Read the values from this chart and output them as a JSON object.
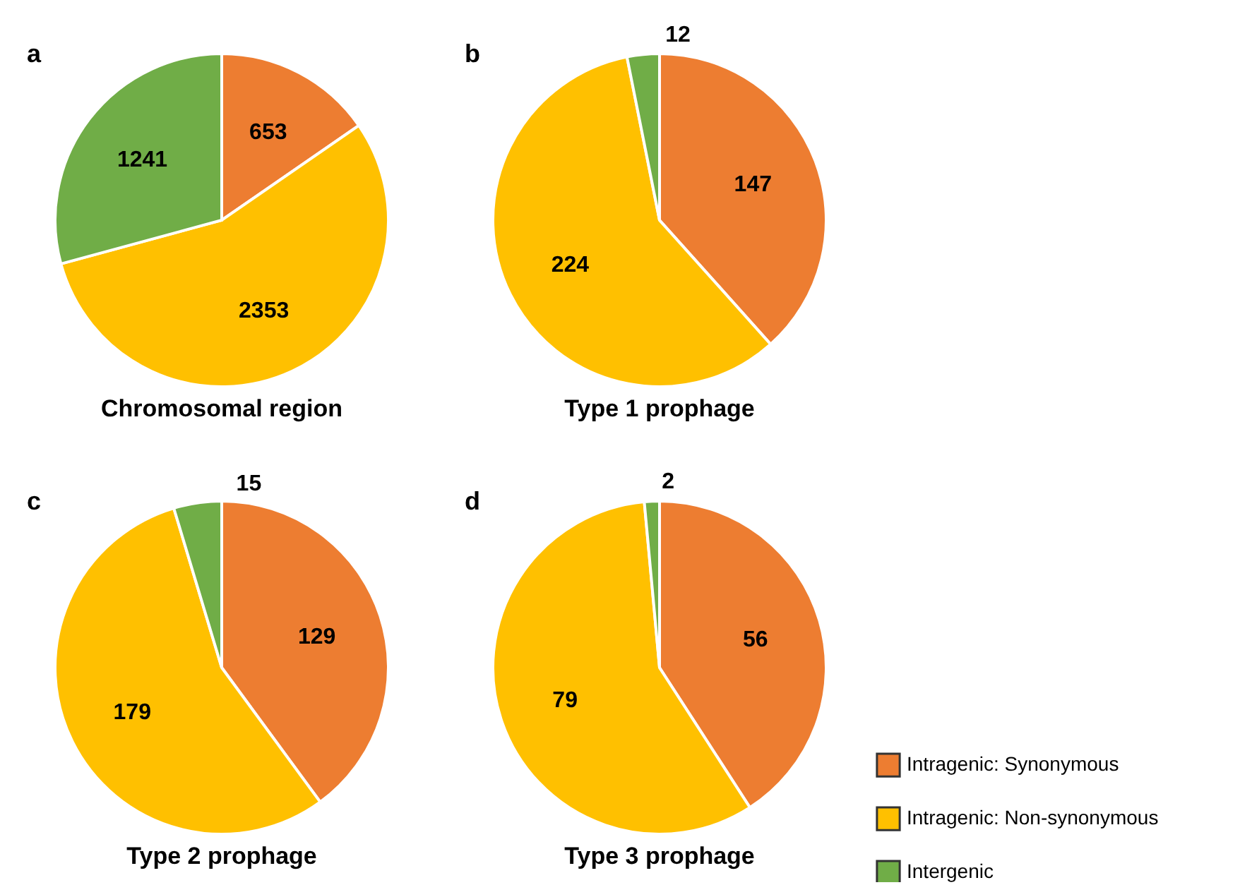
{
  "chart_data": [
    {
      "type": "pie",
      "title": "Chromosomal region",
      "annotations": [
        "a"
      ],
      "values": [
        653,
        2353,
        1241
      ],
      "colors": [
        "#ed7d31",
        "#ffc000",
        "#70ad47"
      ],
      "data_labels": true
    },
    {
      "type": "pie",
      "title": "Type 1 prophage",
      "annotations": [
        "b"
      ],
      "values": [
        147,
        224,
        12
      ],
      "colors": [
        "#ed7d31",
        "#ffc000",
        "#70ad47"
      ],
      "data_labels": true
    },
    {
      "type": "pie",
      "title": "Type 2 prophage",
      "annotations": [
        "c"
      ],
      "values": [
        129,
        179,
        15
      ],
      "colors": [
        "#ed7d31",
        "#ffc000",
        "#70ad47"
      ],
      "data_labels": true
    },
    {
      "type": "pie",
      "title": "Type 3 prophage",
      "annotations": [
        "d"
      ],
      "categories": [
        "Intragenic: Synonymous",
        "Intragenic: Non-synonymous",
        "Intergenic"
      ],
      "values": [
        56,
        79,
        2
      ],
      "colors": [
        "#ed7d31",
        "#ffc000",
        "#70ad47"
      ],
      "data_labels": true,
      "legend": "bottom right"
    }
  ]
}
